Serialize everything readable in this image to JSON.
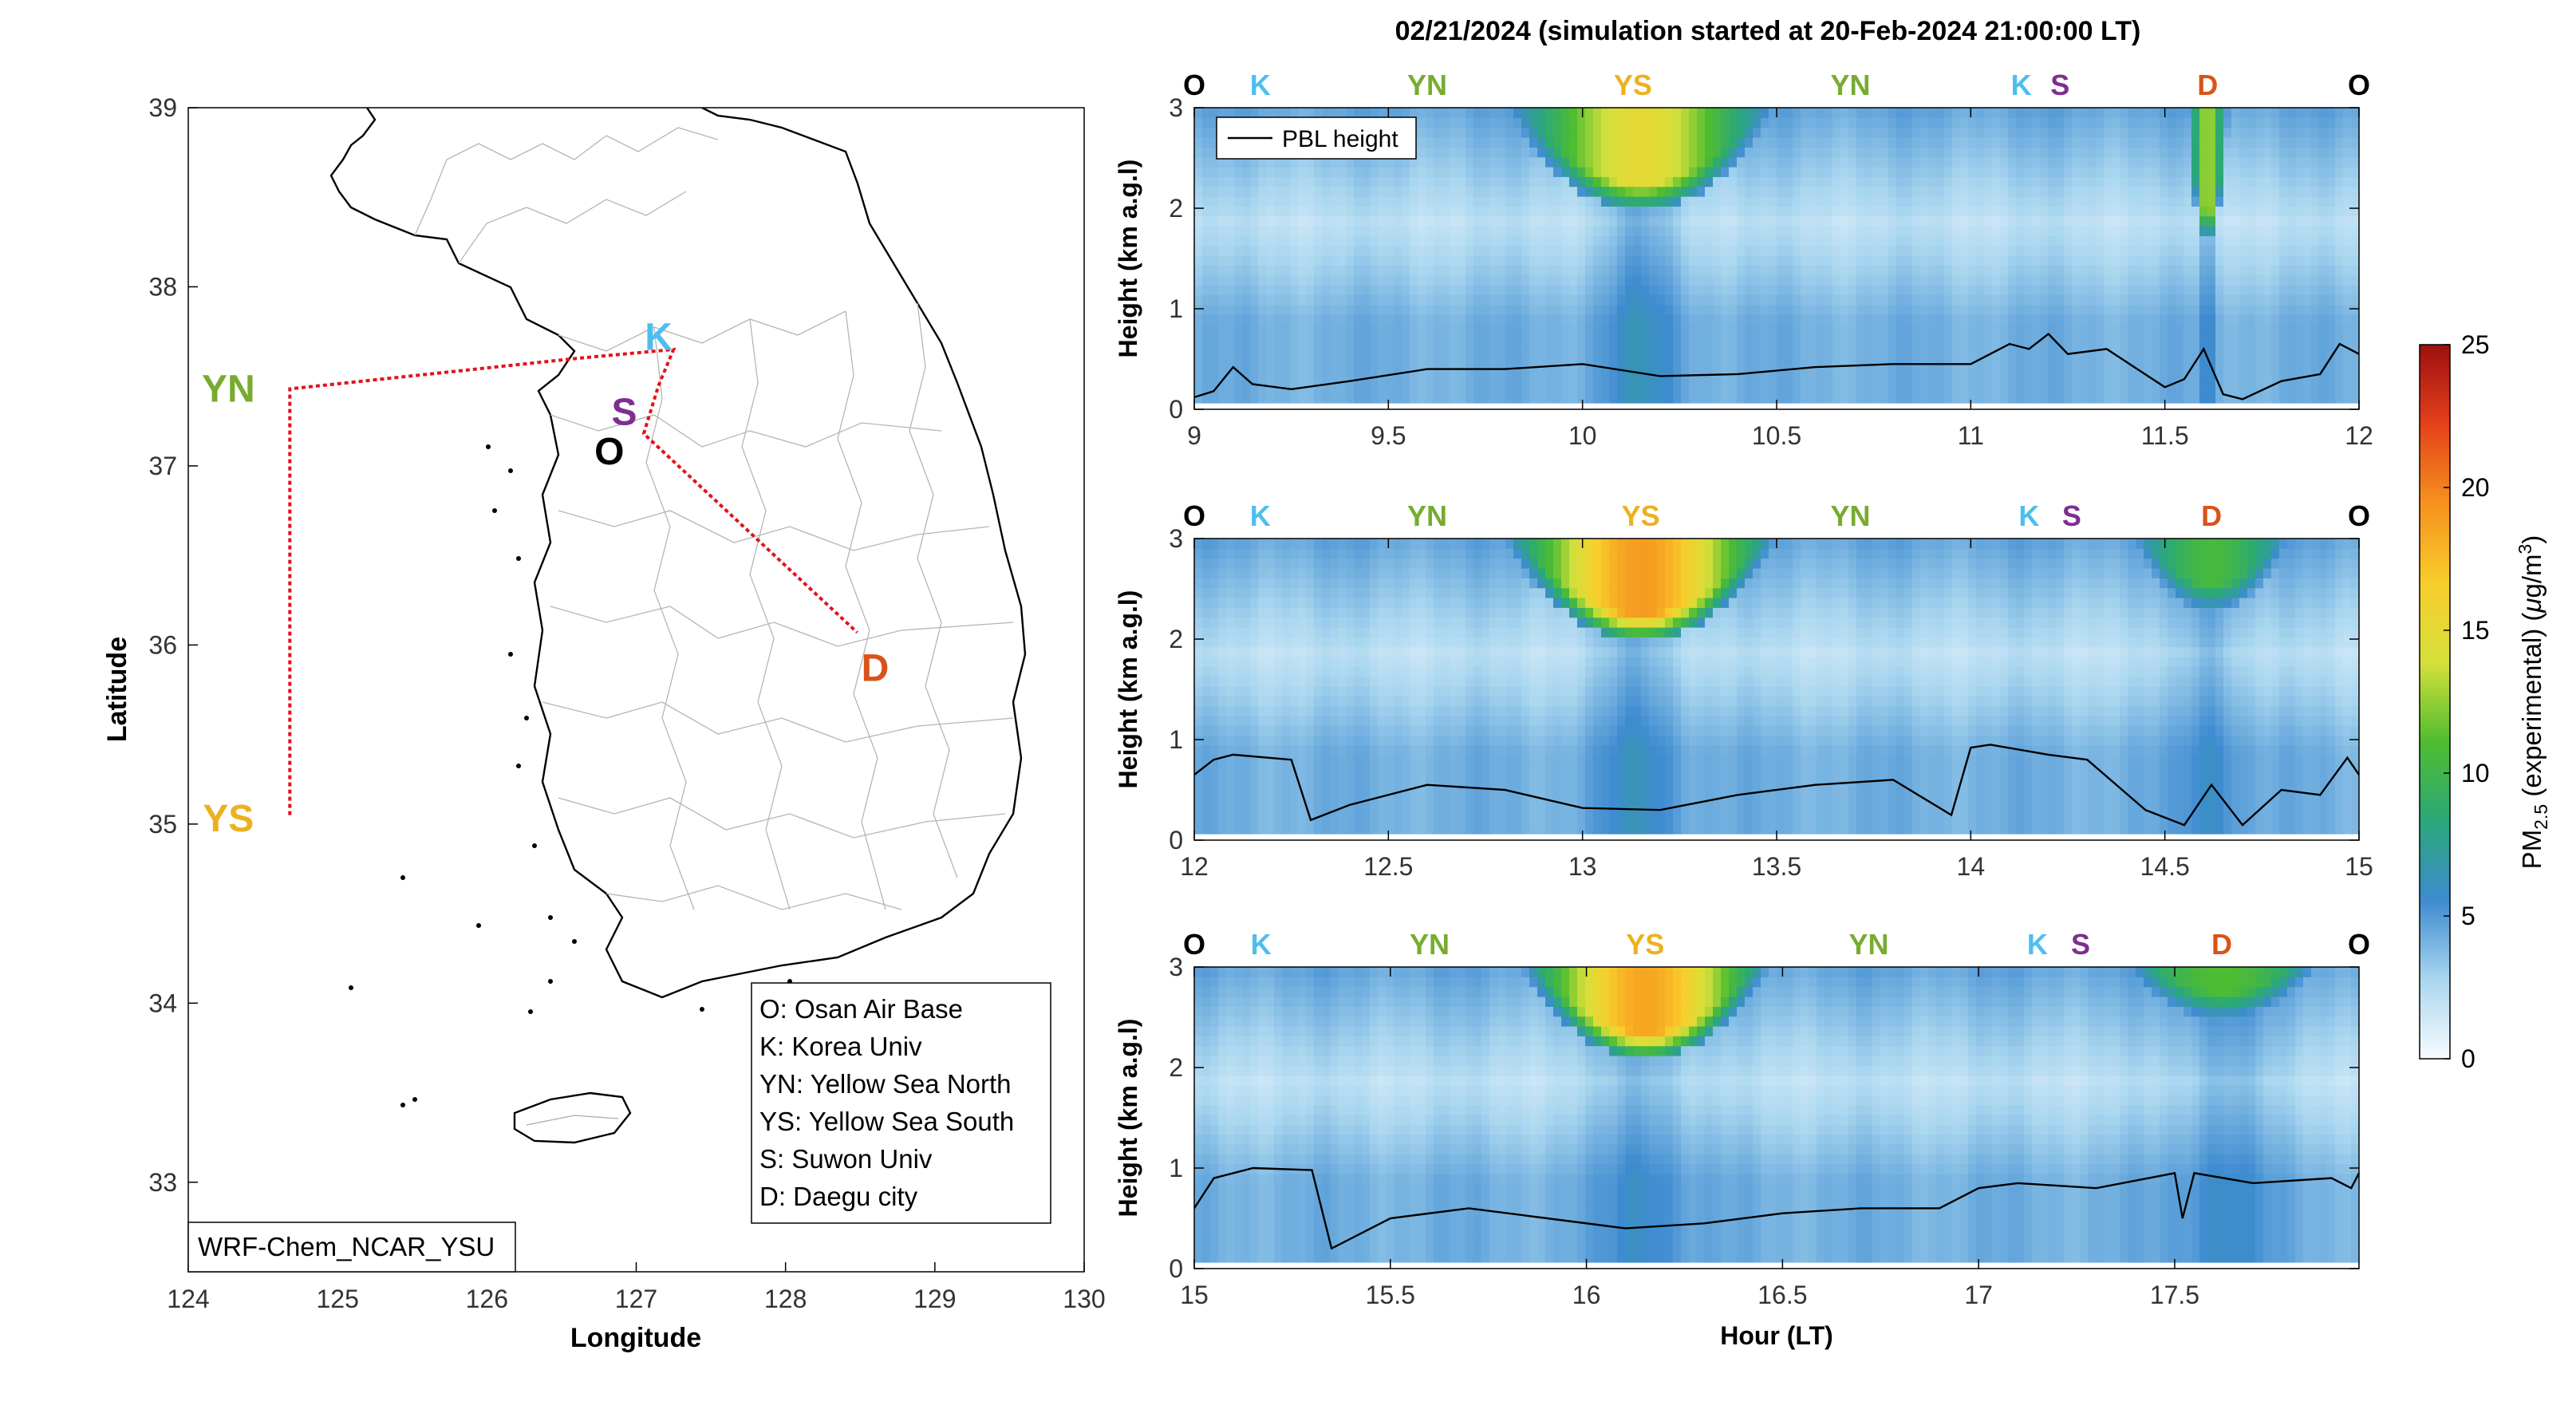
{
  "figure": {
    "title": "02/21/2024 (simulation started at 20-Feb-2024 21:00:00 LT)",
    "model_label": "WRF-Chem_NCAR_YSU"
  },
  "map": {
    "xlabel": "Longitude",
    "ylabel": "Latitude",
    "xticks": [
      124,
      125,
      126,
      127,
      128,
      129,
      130
    ],
    "yticks": [
      33,
      34,
      35,
      36,
      37,
      38,
      39
    ],
    "xlim": [
      124,
      130
    ],
    "ylim": [
      32.5,
      39
    ],
    "sites": [
      {
        "code": "YN",
        "lon": 124.6,
        "lat": 37.43,
        "color": "#77ac30",
        "dx": -62,
        "dy": 0
      },
      {
        "code": "YS",
        "lon": 124.6,
        "lat": 35.03,
        "color": "#edb120",
        "dx": -62,
        "dy": 0
      },
      {
        "code": "K",
        "lon": 127.15,
        "lat": 37.72,
        "color": "#4dbeee",
        "dx": 0,
        "dy": 0
      },
      {
        "code": "S",
        "lon": 126.92,
        "lat": 37.3,
        "color": "#7e2f8e",
        "dx": 0,
        "dy": 0
      },
      {
        "code": "O",
        "lon": 126.82,
        "lat": 37.08,
        "color": "#000000",
        "dx": 0,
        "dy": 0
      },
      {
        "code": "D",
        "lon": 128.6,
        "lat": 35.87,
        "color": "#d95319",
        "dx": 0,
        "dy": 0
      }
    ],
    "flight_track": [
      [
        124.68,
        35.05
      ],
      [
        124.68,
        37.43
      ],
      [
        126.6,
        37.6
      ],
      [
        127.25,
        37.65
      ],
      [
        127.15,
        37.45
      ],
      [
        127.05,
        37.18
      ],
      [
        128.48,
        36.07
      ]
    ],
    "legend_lines": [
      "O: Osan Air Base",
      "K: Korea Univ",
      "YN: Yellow Sea North",
      "YS: Yellow Sea South",
      "S: Suwon Univ",
      "D: Daegu city"
    ]
  },
  "chart_data": [
    {
      "type": "heatmap",
      "panel": 1,
      "title": "02/21/2024 (simulation started at 20-Feb-2024 21:00:00 LT)",
      "xlabel": "",
      "ylabel": "Height (km a.g.l)",
      "xlim": [
        9,
        12
      ],
      "ylim": [
        0,
        3
      ],
      "xticks": [
        9,
        9.5,
        10,
        10.5,
        11,
        11.5,
        12
      ],
      "yticks": [
        0,
        1,
        2,
        3
      ],
      "legend": "top-left",
      "legend_entries": [
        "PBL height"
      ],
      "site_labels": [
        {
          "code": "O",
          "x": 9.0
        },
        {
          "code": "K",
          "x": 9.17
        },
        {
          "code": "YN",
          "x": 9.6
        },
        {
          "code": "YS",
          "x": 10.13
        },
        {
          "code": "YN",
          "x": 10.69
        },
        {
          "code": "K",
          "x": 11.13
        },
        {
          "code": "S",
          "x": 11.23
        },
        {
          "code": "D",
          "x": 11.61
        },
        {
          "code": "O",
          "x": 12.0
        }
      ],
      "pbl_height": {
        "x": [
          9.0,
          9.05,
          9.1,
          9.15,
          9.25,
          9.4,
          9.6,
          9.8,
          10.0,
          10.2,
          10.4,
          10.6,
          10.8,
          11.0,
          11.05,
          11.1,
          11.15,
          11.2,
          11.25,
          11.35,
          11.5,
          11.55,
          11.6,
          11.65,
          11.7,
          11.8,
          11.9,
          11.95,
          12.0
        ],
        "y": [
          0.12,
          0.18,
          0.42,
          0.25,
          0.2,
          0.28,
          0.4,
          0.4,
          0.45,
          0.33,
          0.35,
          0.42,
          0.45,
          0.45,
          0.55,
          0.65,
          0.6,
          0.75,
          0.55,
          0.6,
          0.22,
          0.3,
          0.6,
          0.15,
          0.1,
          0.28,
          0.35,
          0.65,
          0.55
        ]
      },
      "plumes": [
        {
          "x": 10.15,
          "half_width": 0.35,
          "peak": 15,
          "base_km": 2.0
        },
        {
          "x": 11.61,
          "half_width": 0.05,
          "peak": 13,
          "base_km": 1.7
        }
      ]
    },
    {
      "type": "heatmap",
      "panel": 2,
      "xlabel": "",
      "ylabel": "Height (km a.g.l)",
      "xlim": [
        12,
        15
      ],
      "ylim": [
        0,
        3
      ],
      "xticks": [
        12,
        12.5,
        13,
        13.5,
        14,
        14.5,
        15
      ],
      "yticks": [
        0,
        1,
        2,
        3
      ],
      "site_labels": [
        {
          "code": "O",
          "x": 12.0
        },
        {
          "code": "K",
          "x": 12.17
        },
        {
          "code": "YN",
          "x": 12.6
        },
        {
          "code": "YS",
          "x": 13.15
        },
        {
          "code": "YN",
          "x": 13.69
        },
        {
          "code": "K",
          "x": 14.15
        },
        {
          "code": "S",
          "x": 14.26
        },
        {
          "code": "D",
          "x": 14.62
        },
        {
          "code": "O",
          "x": 15.0
        }
      ],
      "pbl_height": {
        "x": [
          12.0,
          12.05,
          12.1,
          12.25,
          12.3,
          12.4,
          12.6,
          12.8,
          13.0,
          13.2,
          13.4,
          13.6,
          13.8,
          13.95,
          14.0,
          14.05,
          14.2,
          14.3,
          14.45,
          14.55,
          14.62,
          14.7,
          14.8,
          14.9,
          14.97,
          15.0
        ],
        "y": [
          0.65,
          0.8,
          0.85,
          0.8,
          0.2,
          0.35,
          0.55,
          0.5,
          0.32,
          0.3,
          0.45,
          0.55,
          0.6,
          0.25,
          0.92,
          0.95,
          0.85,
          0.8,
          0.3,
          0.15,
          0.55,
          0.15,
          0.5,
          0.45,
          0.82,
          0.65
        ]
      },
      "plumes": [
        {
          "x": 13.15,
          "half_width": 0.35,
          "peak": 19,
          "base_km": 2.0
        },
        {
          "x": 14.62,
          "half_width": 0.25,
          "peak": 10.5,
          "base_km": 2.3
        }
      ]
    },
    {
      "type": "heatmap",
      "panel": 3,
      "xlabel": "Hour (LT)",
      "ylabel": "Height (km a.g.l)",
      "xlim": [
        15,
        17.97
      ],
      "ylim": [
        0,
        3
      ],
      "xticks": [
        15,
        15.5,
        16,
        16.5,
        17,
        17.5
      ],
      "yticks": [
        0,
        1,
        2,
        3
      ],
      "site_labels": [
        {
          "code": "O",
          "x": 15.0
        },
        {
          "code": "K",
          "x": 15.17
        },
        {
          "code": "YN",
          "x": 15.6
        },
        {
          "code": "YS",
          "x": 16.15
        },
        {
          "code": "YN",
          "x": 16.72
        },
        {
          "code": "K",
          "x": 17.15
        },
        {
          "code": "S",
          "x": 17.26
        },
        {
          "code": "D",
          "x": 17.62
        },
        {
          "code": "O",
          "x": 17.97
        }
      ],
      "pbl_height": {
        "x": [
          15.0,
          15.05,
          15.15,
          15.3,
          15.35,
          15.5,
          15.7,
          15.9,
          16.1,
          16.3,
          16.5,
          16.7,
          16.9,
          17.0,
          17.1,
          17.3,
          17.5,
          17.52,
          17.55,
          17.7,
          17.9,
          17.95,
          17.97
        ],
        "y": [
          0.6,
          0.9,
          1.0,
          0.98,
          0.2,
          0.5,
          0.6,
          0.5,
          0.4,
          0.45,
          0.55,
          0.6,
          0.6,
          0.8,
          0.85,
          0.8,
          0.95,
          0.5,
          0.95,
          0.85,
          0.9,
          0.8,
          0.95
        ]
      },
      "plumes": [
        {
          "x": 16.15,
          "half_width": 0.33,
          "peak": 18.5,
          "base_km": 2.1
        },
        {
          "x": 17.62,
          "half_width": 0.35,
          "peak": 11,
          "base_km": 2.5
        }
      ]
    }
  ],
  "colorbar": {
    "label": "PM2.5 (experimental) (μg/m3)",
    "ticks": [
      0,
      5,
      10,
      15,
      20,
      25
    ],
    "range": [
      0,
      25
    ],
    "colors": [
      "#f8fbfe",
      "#a9d6ef",
      "#3e8bd0",
      "#2aa878",
      "#4fbd30",
      "#d6e03b",
      "#f8cd2b",
      "#f6921e",
      "#e5401b",
      "#9c1010"
    ]
  }
}
